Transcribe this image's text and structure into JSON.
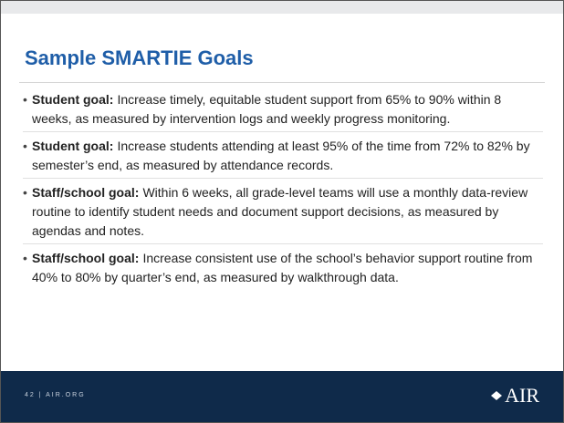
{
  "title": "Sample SMARTIE Goals",
  "bullets": [
    {
      "label": "Student goal:",
      "text": "Increase timely, equitable student support from 65% to 90% within 8 weeks, as measured by intervention logs and weekly progress monitoring."
    },
    {
      "label": "Student goal:",
      "text": "Increase students attending at least 95% of the time from 72% to 82% by semester’s end, as measured by attendance records."
    },
    {
      "label": "Staff/school goal:",
      "text": "Within 6 weeks, all grade-level teams will use a monthly data-review routine to identify student needs and document support decisions, as measured by agendas and notes."
    },
    {
      "label": "Staff/school goal:",
      "text": "Increase consistent use of the school’s behavior support routine from 40% to 80% by quarter’s end, as measured by walkthrough data."
    }
  ],
  "footer": {
    "text": "42 | AIR.ORG",
    "logo": "AIR"
  }
}
